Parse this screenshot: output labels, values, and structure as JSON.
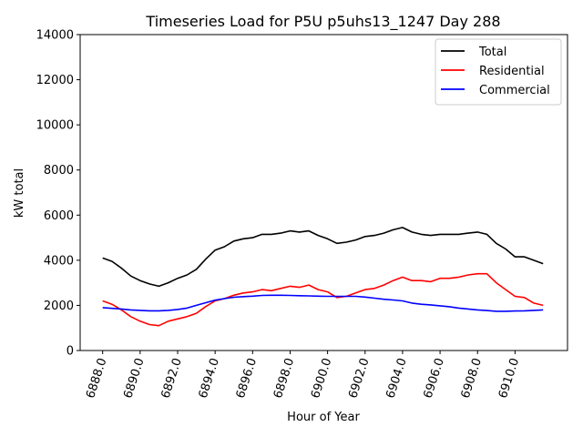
{
  "chart_data": {
    "type": "line",
    "title": "Timeseries Load for P5U p5uhs13_1247  Day 288",
    "xlabel": "Hour of Year",
    "ylabel": "kW total",
    "xlim": [
      6886.8,
      6912.8
    ],
    "ylim": [
      0,
      14000
    ],
    "x_ticks": [
      6888,
      6890,
      6892,
      6894,
      6896,
      6898,
      6900,
      6902,
      6904,
      6906,
      6908,
      6910
    ],
    "x_tick_labels": [
      "6888.0",
      "6890.0",
      "6892.0",
      "6894.0",
      "6896.0",
      "6898.0",
      "6900.0",
      "6902.0",
      "6904.0",
      "6906.0",
      "6908.0",
      "6910.0"
    ],
    "y_ticks": [
      0,
      2000,
      4000,
      6000,
      8000,
      10000,
      12000,
      14000
    ],
    "y_tick_labels": [
      "0",
      "2000",
      "4000",
      "6000",
      "8000",
      "10000",
      "12000",
      "14000"
    ],
    "legend_position": "top-right",
    "series": [
      {
        "name": "Total",
        "color": "#000000",
        "x": [
          6888.0,
          6888.5,
          6889.0,
          6889.5,
          6890.0,
          6890.5,
          6891.0,
          6891.5,
          6892.0,
          6892.5,
          6893.0,
          6893.5,
          6894.0,
          6894.5,
          6895.0,
          6895.5,
          6896.0,
          6896.5,
          6897.0,
          6897.5,
          6898.0,
          6898.5,
          6899.0,
          6899.5,
          6900.0,
          6900.5,
          6901.0,
          6901.5,
          6902.0,
          6902.5,
          6903.0,
          6903.5,
          6904.0,
          6904.5,
          6905.0,
          6905.5,
          6906.0,
          6906.5,
          6907.0,
          6907.5,
          6908.0,
          6908.5,
          6909.0,
          6909.5,
          6910.0,
          6910.5,
          6911.0,
          6911.5
        ],
        "values": [
          4100,
          3950,
          3650,
          3300,
          3100,
          2950,
          2850,
          3000,
          3200,
          3350,
          3600,
          4050,
          4450,
          4600,
          4850,
          4950,
          5000,
          5150,
          5150,
          5200,
          5300,
          5250,
          5300,
          5100,
          4950,
          4750,
          4800,
          4900,
          5050,
          5100,
          5200,
          5350,
          5450,
          5250,
          5150,
          5100,
          5150,
          5150,
          5150,
          5200,
          5250,
          5150,
          4750,
          4500,
          4150,
          4150,
          4000,
          3850
        ]
      },
      {
        "name": "Residential",
        "color": "#ff0000",
        "x": [
          6888.0,
          6888.5,
          6889.0,
          6889.5,
          6890.0,
          6890.5,
          6891.0,
          6891.5,
          6892.0,
          6892.5,
          6893.0,
          6893.5,
          6894.0,
          6894.5,
          6895.0,
          6895.5,
          6896.0,
          6896.5,
          6897.0,
          6897.5,
          6898.0,
          6898.5,
          6899.0,
          6899.5,
          6900.0,
          6900.5,
          6901.0,
          6901.5,
          6902.0,
          6902.5,
          6903.0,
          6903.5,
          6904.0,
          6904.5,
          6905.0,
          6905.5,
          6906.0,
          6906.5,
          6907.0,
          6907.5,
          6908.0,
          6908.5,
          6909.0,
          6909.5,
          6910.0,
          6910.5,
          6911.0,
          6911.5
        ],
        "values": [
          2200,
          2050,
          1800,
          1500,
          1300,
          1150,
          1100,
          1300,
          1400,
          1500,
          1650,
          1950,
          2200,
          2300,
          2450,
          2550,
          2600,
          2700,
          2650,
          2750,
          2850,
          2800,
          2900,
          2700,
          2600,
          2350,
          2400,
          2550,
          2700,
          2750,
          2900,
          3100,
          3250,
          3100,
          3100,
          3050,
          3200,
          3200,
          3250,
          3350,
          3400,
          3400,
          3000,
          2700,
          2400,
          2350,
          2100,
          2000
        ]
      },
      {
        "name": "Commercial",
        "color": "#0000ff",
        "x": [
          6888.0,
          6888.5,
          6889.0,
          6889.5,
          6890.0,
          6890.5,
          6891.0,
          6891.5,
          6892.0,
          6892.5,
          6893.0,
          6893.5,
          6894.0,
          6894.5,
          6895.0,
          6895.5,
          6896.0,
          6896.5,
          6897.0,
          6897.5,
          6898.0,
          6898.5,
          6899.0,
          6899.5,
          6900.0,
          6900.5,
          6901.0,
          6901.5,
          6902.0,
          6902.5,
          6903.0,
          6903.5,
          6904.0,
          6904.5,
          6905.0,
          6905.5,
          6906.0,
          6906.5,
          6907.0,
          6907.5,
          6908.0,
          6908.5,
          6909.0,
          6909.5,
          6910.0,
          6910.5,
          6911.0,
          6911.5
        ],
        "values": [
          1900,
          1870,
          1840,
          1800,
          1780,
          1760,
          1760,
          1780,
          1820,
          1880,
          2000,
          2120,
          2230,
          2300,
          2360,
          2390,
          2410,
          2440,
          2450,
          2450,
          2440,
          2430,
          2420,
          2410,
          2400,
          2400,
          2400,
          2400,
          2370,
          2320,
          2270,
          2240,
          2200,
          2100,
          2050,
          2020,
          1980,
          1940,
          1880,
          1840,
          1800,
          1770,
          1740,
          1740,
          1750,
          1760,
          1780,
          1800
        ]
      }
    ]
  }
}
